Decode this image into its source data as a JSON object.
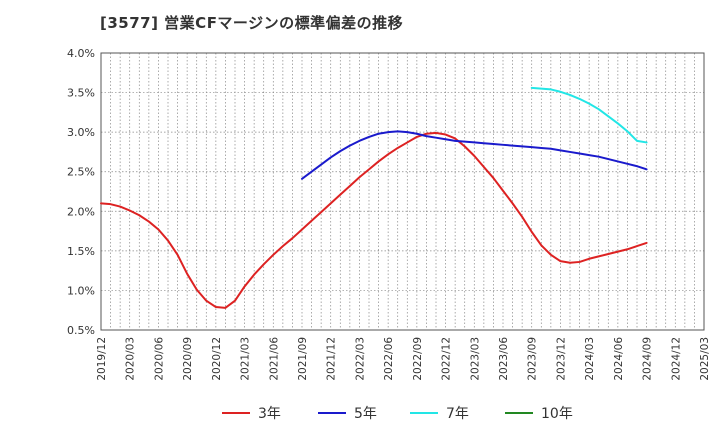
{
  "title": "[3577]  営業CFマージンの標準偏差の推移",
  "chart_data": {
    "type": "line",
    "title": "[3577]  営業CFマージンの標準偏差の推移",
    "xlabel": "",
    "ylabel": "",
    "ylim": [
      0.5,
      4.0
    ],
    "grid": true,
    "legend_position": "bottom",
    "y_ticks": [
      "0.5%",
      "1.0%",
      "1.5%",
      "2.0%",
      "2.5%",
      "3.0%",
      "3.5%",
      "4.0%"
    ],
    "x_ticks": [
      "2019/12",
      "2020/03",
      "2020/06",
      "2020/09",
      "2020/12",
      "2021/03",
      "2021/06",
      "2021/09",
      "2021/12",
      "2022/03",
      "2022/06",
      "2022/09",
      "2022/12",
      "2023/03",
      "2023/06",
      "2023/09",
      "2023/12",
      "2024/03",
      "2024/06",
      "2024/09",
      "2024/12",
      "2025/03"
    ],
    "series": [
      {
        "name": "3年",
        "color": "#dd2222",
        "points": [
          [
            "2019/12",
            2.1
          ],
          [
            "2020/01",
            2.09
          ],
          [
            "2020/02",
            2.06
          ],
          [
            "2020/03",
            2.01
          ],
          [
            "2020/04",
            1.95
          ],
          [
            "2020/05",
            1.87
          ],
          [
            "2020/06",
            1.77
          ],
          [
            "2020/07",
            1.63
          ],
          [
            "2020/08",
            1.45
          ],
          [
            "2020/09",
            1.21
          ],
          [
            "2020/10",
            1.01
          ],
          [
            "2020/11",
            0.87
          ],
          [
            "2020/12",
            0.79
          ],
          [
            "2021/01",
            0.78
          ],
          [
            "2021/02",
            0.87
          ],
          [
            "2021/03",
            1.05
          ],
          [
            "2021/04",
            1.2
          ],
          [
            "2021/05",
            1.33
          ],
          [
            "2021/06",
            1.45
          ],
          [
            "2021/07",
            1.56
          ],
          [
            "2021/08",
            1.66
          ],
          [
            "2021/09",
            1.77
          ],
          [
            "2021/10",
            1.88
          ],
          [
            "2021/11",
            1.99
          ],
          [
            "2021/12",
            2.1
          ],
          [
            "2022/01",
            2.21
          ],
          [
            "2022/02",
            2.32
          ],
          [
            "2022/03",
            2.43
          ],
          [
            "2022/04",
            2.53
          ],
          [
            "2022/05",
            2.63
          ],
          [
            "2022/06",
            2.72
          ],
          [
            "2022/07",
            2.8
          ],
          [
            "2022/08",
            2.87
          ],
          [
            "2022/09",
            2.94
          ],
          [
            "2022/10",
            2.98
          ],
          [
            "2022/11",
            2.99
          ],
          [
            "2022/12",
            2.97
          ],
          [
            "2023/01",
            2.92
          ],
          [
            "2023/02",
            2.82
          ],
          [
            "2023/03",
            2.7
          ],
          [
            "2023/04",
            2.56
          ],
          [
            "2023/05",
            2.42
          ],
          [
            "2023/06",
            2.26
          ],
          [
            "2023/07",
            2.1
          ],
          [
            "2023/08",
            1.93
          ],
          [
            "2023/09",
            1.74
          ],
          [
            "2023/10",
            1.57
          ],
          [
            "2023/11",
            1.45
          ],
          [
            "2023/12",
            1.37
          ],
          [
            "2024/01",
            1.35
          ],
          [
            "2024/02",
            1.36
          ],
          [
            "2024/03",
            1.4
          ],
          [
            "2024/04",
            1.43
          ],
          [
            "2024/05",
            1.46
          ],
          [
            "2024/06",
            1.49
          ],
          [
            "2024/07",
            1.52
          ],
          [
            "2024/08",
            1.56
          ],
          [
            "2024/09",
            1.6
          ]
        ]
      },
      {
        "name": "5年",
        "color": "#1a1acc",
        "points": [
          [
            "2021/09",
            2.41
          ],
          [
            "2021/10",
            2.5
          ],
          [
            "2021/11",
            2.59
          ],
          [
            "2021/12",
            2.68
          ],
          [
            "2022/01",
            2.76
          ],
          [
            "2022/02",
            2.83
          ],
          [
            "2022/03",
            2.89
          ],
          [
            "2022/04",
            2.94
          ],
          [
            "2022/05",
            2.98
          ],
          [
            "2022/06",
            3.0
          ],
          [
            "2022/07",
            3.01
          ],
          [
            "2022/08",
            3.0
          ],
          [
            "2022/09",
            2.98
          ],
          [
            "2022/10",
            2.95
          ],
          [
            "2022/11",
            2.93
          ],
          [
            "2022/12",
            2.91
          ],
          [
            "2023/01",
            2.89
          ],
          [
            "2023/02",
            2.88
          ],
          [
            "2023/03",
            2.87
          ],
          [
            "2023/04",
            2.86
          ],
          [
            "2023/05",
            2.85
          ],
          [
            "2023/06",
            2.84
          ],
          [
            "2023/07",
            2.83
          ],
          [
            "2023/08",
            2.82
          ],
          [
            "2023/09",
            2.81
          ],
          [
            "2023/10",
            2.8
          ],
          [
            "2023/11",
            2.79
          ],
          [
            "2023/12",
            2.77
          ],
          [
            "2024/01",
            2.75
          ],
          [
            "2024/02",
            2.73
          ],
          [
            "2024/03",
            2.71
          ],
          [
            "2024/04",
            2.69
          ],
          [
            "2024/05",
            2.66
          ],
          [
            "2024/06",
            2.63
          ],
          [
            "2024/07",
            2.6
          ],
          [
            "2024/08",
            2.57
          ],
          [
            "2024/09",
            2.53
          ]
        ]
      },
      {
        "name": "7年",
        "color": "#22e6e6",
        "points": [
          [
            "2023/09",
            3.56
          ],
          [
            "2023/10",
            3.55
          ],
          [
            "2023/11",
            3.54
          ],
          [
            "2023/12",
            3.51
          ],
          [
            "2024/01",
            3.47
          ],
          [
            "2024/02",
            3.42
          ],
          [
            "2024/03",
            3.36
          ],
          [
            "2024/04",
            3.29
          ],
          [
            "2024/05",
            3.2
          ],
          [
            "2024/06",
            3.11
          ],
          [
            "2024/07",
            3.01
          ],
          [
            "2024/08",
            2.89
          ],
          [
            "2024/09",
            2.87
          ]
        ]
      },
      {
        "name": "10年",
        "color": "#228822",
        "points": []
      }
    ]
  }
}
